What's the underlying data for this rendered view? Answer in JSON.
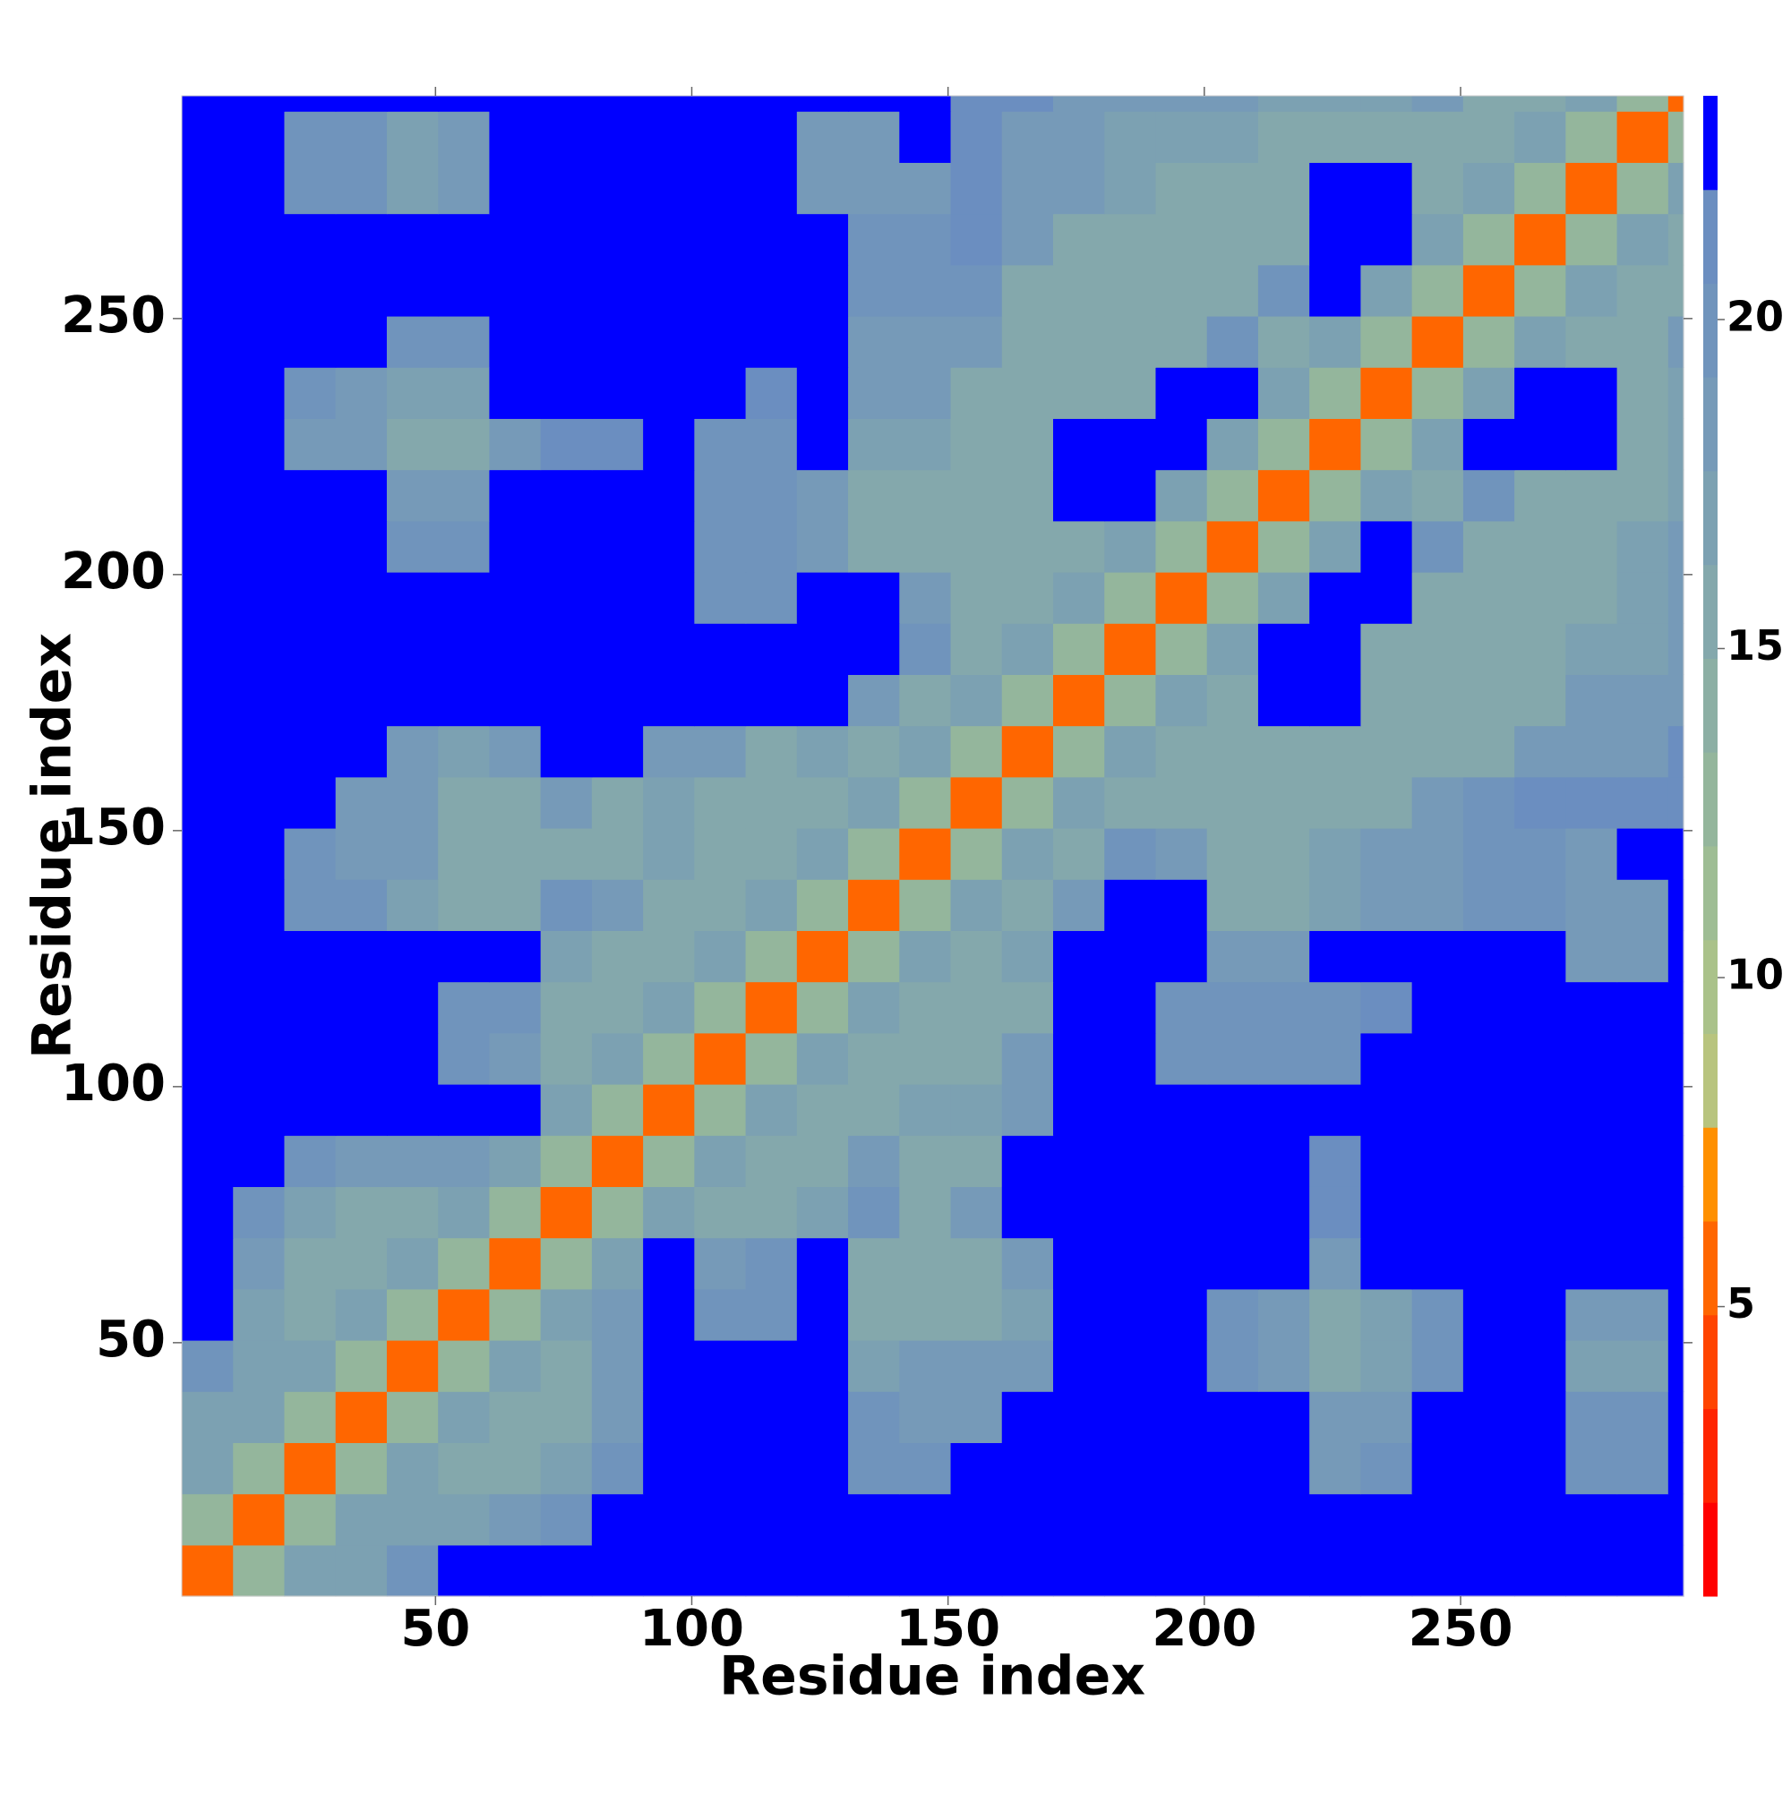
{
  "chart_data": {
    "type": "heatmap",
    "xlabel": "Residue index",
    "ylabel": "Residue index",
    "xlim": [
      0.5,
      293.5
    ],
    "ylim": [
      0.5,
      293.5
    ],
    "xticks": [
      50,
      100,
      150,
      200,
      250
    ],
    "yticks": [
      50,
      100,
      150,
      200,
      250
    ],
    "bins": [
      0.5,
      10.5,
      20.5,
      30.5,
      40.5,
      50.5,
      60.5,
      70.5,
      80.5,
      90.5,
      100.5,
      110.5,
      120.5,
      130.5,
      140.5,
      150.5,
      160.5,
      170.5,
      180.5,
      190.5,
      200.5,
      210.5,
      220.5,
      230.5,
      240.5,
      250.5,
      260.5,
      270.5,
      280.5,
      290.5,
      293.5
    ],
    "clim": [
      0.6,
      23.4
    ],
    "cticks": [
      5,
      10,
      15,
      20
    ],
    "colors": [
      "#ff0000",
      "#ff2400",
      "#ff4400",
      "#ff6600",
      "#ff9000",
      "#b8c47e",
      "#aac28a",
      "#9ebd94",
      "#94b69c",
      "#8cafa4",
      "#84a8ac",
      "#7ca1b2",
      "#769ab8",
      "#7094bc",
      "#6b8ec0",
      "#0000ff"
    ],
    "values": [
      [
        6,
        12,
        17,
        17,
        20,
        23,
        23,
        23,
        23,
        23,
        23,
        23,
        23,
        23,
        23,
        23,
        23,
        23,
        23,
        23,
        23,
        23,
        23,
        23,
        23,
        23,
        23,
        23,
        23,
        23
      ],
      [
        12,
        6,
        12,
        17,
        17,
        17,
        18,
        20,
        23,
        23,
        23,
        23,
        23,
        23,
        23,
        23,
        23,
        23,
        23,
        23,
        23,
        23,
        23,
        23,
        23,
        23,
        23,
        23,
        23,
        23
      ],
      [
        17,
        12,
        6,
        12,
        17,
        16,
        16,
        17,
        20,
        23,
        23,
        23,
        23,
        20,
        20,
        23,
        23,
        23,
        23,
        23,
        23,
        23,
        19,
        20,
        23,
        23,
        23,
        20,
        20,
        23
      ],
      [
        17,
        17,
        12,
        6,
        12,
        17,
        16,
        16,
        19,
        23,
        23,
        23,
        23,
        20,
        19,
        19,
        23,
        23,
        23,
        23,
        23,
        23,
        19,
        19,
        23,
        23,
        23,
        20,
        20,
        23
      ],
      [
        20,
        17,
        17,
        12,
        6,
        12,
        17,
        16,
        18,
        23,
        23,
        23,
        23,
        17,
        19,
        19,
        18,
        23,
        23,
        23,
        20,
        18,
        15,
        17,
        20,
        23,
        23,
        17,
        17,
        23
      ],
      [
        23,
        17,
        16,
        17,
        12,
        6,
        12,
        17,
        18,
        23,
        20,
        20,
        23,
        16,
        16,
        16,
        17,
        23,
        23,
        23,
        20,
        18,
        15,
        17,
        20,
        23,
        23,
        18,
        18,
        23
      ],
      [
        23,
        18,
        16,
        16,
        17,
        12,
        6,
        12,
        17,
        23,
        19,
        20,
        23,
        16,
        16,
        16,
        18,
        23,
        23,
        23,
        23,
        23,
        19,
        23,
        23,
        23,
        23,
        23,
        23,
        23
      ],
      [
        23,
        20,
        17,
        16,
        16,
        17,
        12,
        6,
        12,
        17,
        16,
        16,
        17,
        20,
        16,
        18,
        23,
        23,
        23,
        23,
        23,
        23,
        21,
        23,
        23,
        23,
        23,
        23,
        23,
        23
      ],
      [
        23,
        23,
        20,
        19,
        18,
        18,
        17,
        12,
        6,
        12,
        17,
        16,
        16,
        19,
        16,
        16,
        23,
        23,
        23,
        23,
        23,
        23,
        21,
        23,
        23,
        23,
        23,
        23,
        23,
        23
      ],
      [
        23,
        23,
        23,
        23,
        23,
        23,
        23,
        17,
        12,
        6,
        12,
        17,
        15,
        16,
        17,
        17,
        18,
        23,
        23,
        23,
        23,
        23,
        23,
        23,
        23,
        23,
        23,
        23,
        23,
        23
      ],
      [
        23,
        23,
        23,
        23,
        23,
        20,
        19,
        16,
        17,
        12,
        6,
        12,
        17,
        15,
        15,
        15,
        18,
        23,
        23,
        20,
        20,
        20,
        20,
        23,
        23,
        23,
        23,
        23,
        23,
        23
      ],
      [
        23,
        23,
        23,
        23,
        23,
        20,
        20,
        16,
        16,
        17,
        12,
        6,
        12,
        17,
        15,
        15,
        16,
        23,
        23,
        20,
        20,
        20,
        20,
        21,
        23,
        23,
        23,
        23,
        23,
        23
      ],
      [
        23,
        23,
        23,
        23,
        23,
        23,
        23,
        17,
        16,
        15,
        17,
        12,
        6,
        12,
        17,
        15,
        17,
        23,
        23,
        23,
        19,
        19,
        23,
        23,
        23,
        23,
        23,
        19,
        19,
        23
      ],
      [
        23,
        23,
        20,
        20,
        17,
        16,
        16,
        20,
        19,
        16,
        15,
        17,
        12,
        6,
        12,
        17,
        15,
        18,
        23,
        23,
        16,
        16,
        17,
        19,
        19,
        20,
        20,
        19,
        19,
        23
      ],
      [
        23,
        23,
        20,
        19,
        19,
        16,
        16,
        16,
        16,
        17,
        15,
        15,
        17,
        12,
        6,
        12,
        17,
        15,
        20,
        18,
        16,
        16,
        17,
        19,
        19,
        20,
        20,
        19,
        23,
        23
      ],
      [
        23,
        23,
        23,
        19,
        19,
        16,
        16,
        18,
        16,
        17,
        15,
        15,
        15,
        17,
        12,
        6,
        12,
        17,
        16,
        16,
        16,
        16,
        16,
        16,
        18,
        20,
        21,
        21,
        21,
        21
      ],
      [
        23,
        23,
        23,
        23,
        18,
        17,
        18,
        23,
        23,
        18,
        18,
        16,
        17,
        15,
        17,
        12,
        6,
        12,
        17,
        16,
        16,
        16,
        16,
        16,
        16,
        16,
        18,
        19,
        19,
        21
      ],
      [
        23,
        23,
        23,
        23,
        23,
        23,
        23,
        23,
        23,
        23,
        23,
        23,
        23,
        18,
        15,
        17,
        12,
        6,
        12,
        17,
        16,
        23,
        23,
        16,
        16,
        16,
        16,
        18,
        18,
        19
      ],
      [
        23,
        23,
        23,
        23,
        23,
        23,
        23,
        23,
        23,
        23,
        23,
        23,
        23,
        23,
        20,
        16,
        17,
        12,
        6,
        12,
        17,
        23,
        23,
        16,
        16,
        16,
        16,
        17,
        17,
        19
      ],
      [
        23,
        23,
        23,
        23,
        23,
        23,
        23,
        23,
        23,
        23,
        20,
        20,
        23,
        23,
        18,
        16,
        16,
        17,
        12,
        6,
        12,
        17,
        23,
        23,
        16,
        16,
        16,
        16,
        17,
        19
      ],
      [
        23,
        23,
        23,
        23,
        20,
        20,
        23,
        23,
        23,
        23,
        20,
        20,
        19,
        16,
        16,
        16,
        16,
        16,
        17,
        12,
        6,
        12,
        17,
        23,
        20,
        16,
        16,
        16,
        17,
        19
      ],
      [
        23,
        23,
        23,
        23,
        18,
        18,
        23,
        23,
        23,
        23,
        20,
        20,
        19,
        16,
        16,
        16,
        16,
        23,
        23,
        17,
        12,
        6,
        12,
        17,
        16,
        20,
        16,
        16,
        16,
        17
      ],
      [
        23,
        23,
        19,
        19,
        15,
        15,
        19,
        21,
        21,
        23,
        20,
        20,
        23,
        17,
        17,
        16,
        16,
        23,
        23,
        23,
        17,
        12,
        6,
        12,
        17,
        23,
        23,
        23,
        16,
        17
      ],
      [
        23,
        23,
        20,
        19,
        17,
        17,
        23,
        23,
        23,
        23,
        23,
        21,
        23,
        19,
        19,
        16,
        16,
        16,
        16,
        23,
        23,
        17,
        12,
        6,
        12,
        17,
        23,
        23,
        16,
        17
      ],
      [
        23,
        23,
        23,
        23,
        20,
        20,
        23,
        23,
        23,
        23,
        23,
        23,
        23,
        19,
        19,
        18,
        16,
        16,
        16,
        16,
        20,
        16,
        17,
        12,
        6,
        12,
        17,
        16,
        16,
        18
      ],
      [
        23,
        23,
        23,
        23,
        23,
        23,
        23,
        23,
        23,
        23,
        23,
        23,
        23,
        20,
        20,
        20,
        16,
        16,
        16,
        16,
        16,
        20,
        23,
        17,
        12,
        6,
        12,
        17,
        16,
        16
      ],
      [
        23,
        23,
        23,
        23,
        23,
        23,
        23,
        23,
        23,
        23,
        23,
        23,
        23,
        20,
        20,
        21,
        18,
        16,
        16,
        16,
        16,
        16,
        23,
        23,
        17,
        12,
        6,
        12,
        17,
        16
      ],
      [
        23,
        23,
        20,
        20,
        17,
        18,
        23,
        23,
        23,
        23,
        23,
        23,
        19,
        19,
        19,
        21,
        19,
        18,
        17,
        16,
        16,
        16,
        23,
        23,
        16,
        17,
        12,
        6,
        12,
        17
      ],
      [
        23,
        23,
        20,
        20,
        17,
        18,
        23,
        23,
        23,
        23,
        23,
        23,
        19,
        19,
        23,
        21,
        19,
        18,
        17,
        17,
        17,
        16,
        16,
        16,
        16,
        16,
        17,
        12,
        6,
        12
      ],
      [
        23,
        23,
        23,
        23,
        23,
        23,
        23,
        23,
        23,
        23,
        23,
        23,
        23,
        23,
        23,
        21,
        21,
        19,
        19,
        19,
        19,
        17,
        17,
        17,
        18,
        16,
        16,
        17,
        12,
        6
      ]
    ]
  }
}
